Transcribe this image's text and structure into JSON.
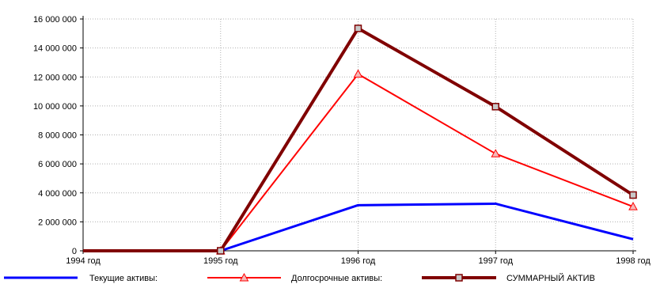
{
  "chart_data": {
    "type": "line",
    "x": [
      "1994 год",
      "1995 год",
      "1996 год",
      "1997 год",
      "1998 год"
    ],
    "ylim": [
      0,
      16000000
    ],
    "yticks": [
      0,
      2000000,
      4000000,
      6000000,
      8000000,
      10000000,
      12000000,
      14000000,
      16000000
    ],
    "ytick_labels": [
      "0",
      "2 000 000",
      "4 000 000",
      "6 000 000",
      "8 000 000",
      "10 000 000",
      "12 000 000",
      "14 000 000",
      "16 000 000"
    ],
    "grid": true,
    "legend_position": "bottom",
    "series": [
      {
        "name": "Текущие активы:",
        "color": "#0000ff",
        "marker": "none",
        "width": 3,
        "values": [
          0,
          0,
          3150000,
          3250000,
          800000
        ]
      },
      {
        "name": "Долгосрочные активы:",
        "color": "#ff0000",
        "marker": "triangle",
        "width": 2,
        "values": [
          0,
          0,
          12200000,
          6700000,
          3050000
        ]
      },
      {
        "name": "СУММАРНЫЙ АКТИВ",
        "color": "#800000",
        "marker": "square",
        "width": 4,
        "values": [
          0,
          0,
          15350000,
          9950000,
          3850000
        ]
      }
    ]
  }
}
